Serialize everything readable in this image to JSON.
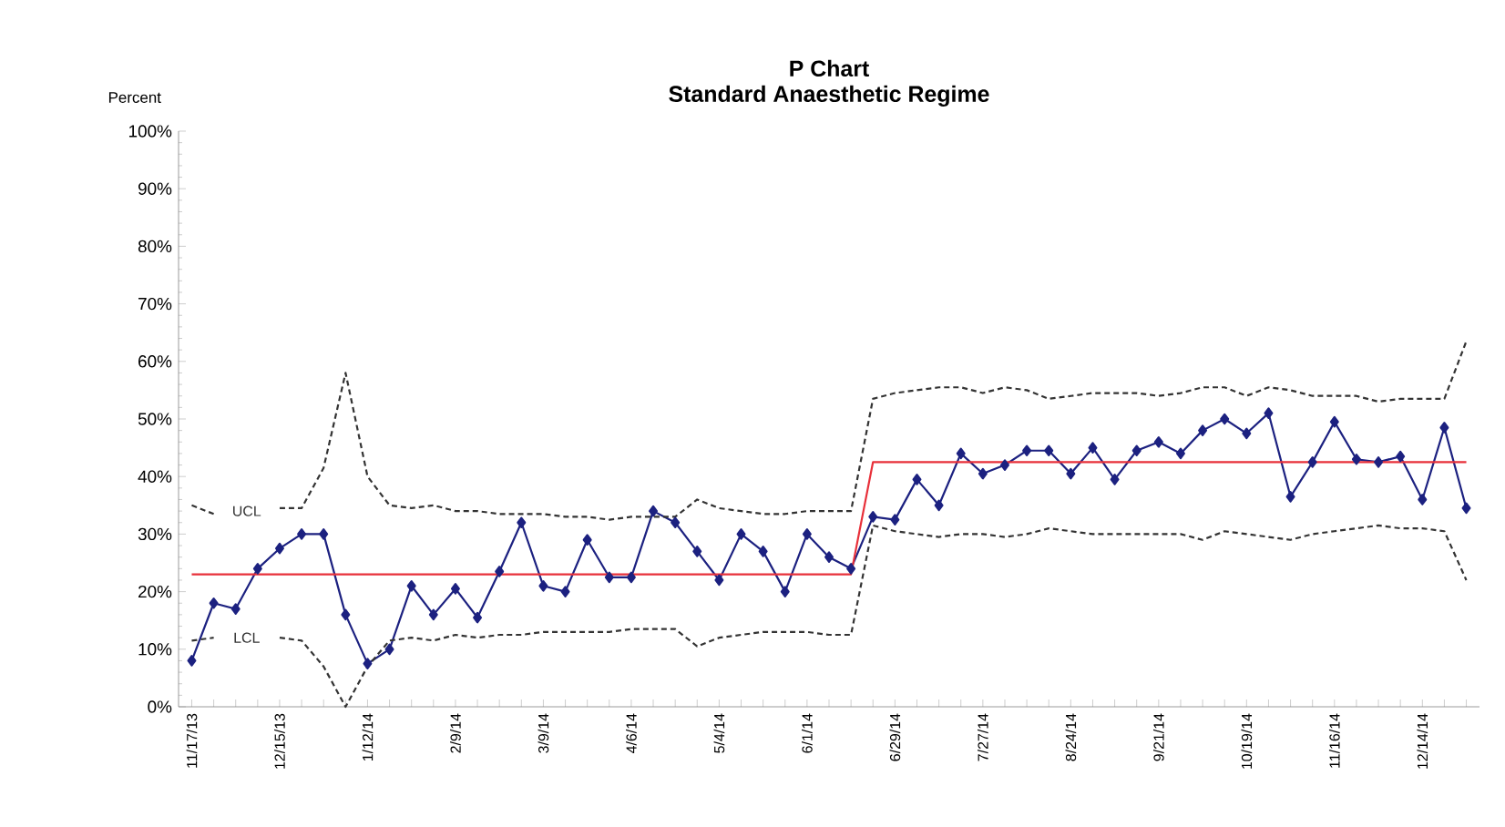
{
  "chart_data": {
    "type": "line",
    "title": "P Chart",
    "subtitle": "Standard Anaesthetic Regime",
    "ylabel": "Percent",
    "categories": [
      "11/17/13",
      null,
      null,
      null,
      "12/15/13",
      null,
      null,
      null,
      "1/12/14",
      null,
      null,
      null,
      "2/9/14",
      null,
      null,
      null,
      "3/9/14",
      null,
      null,
      null,
      "4/6/14",
      null,
      null,
      null,
      "5/4/14",
      null,
      null,
      null,
      "6/1/14",
      null,
      null,
      null,
      "6/29/14",
      null,
      null,
      null,
      "7/27/14",
      null,
      null,
      null,
      "8/24/14",
      null,
      null,
      null,
      "9/21/14",
      null,
      null,
      null,
      "10/19/14",
      null,
      null,
      null,
      "11/16/14",
      null,
      null,
      null,
      "12/14/14",
      null,
      null
    ],
    "ylim": [
      0,
      100
    ],
    "yticks": [
      {
        "value": 0,
        "label": "0%"
      },
      {
        "value": 10,
        "label": "10%"
      },
      {
        "value": 20,
        "label": "20%"
      },
      {
        "value": 30,
        "label": "30%"
      },
      {
        "value": 40,
        "label": "40%"
      },
      {
        "value": 50,
        "label": "50%"
      },
      {
        "value": 60,
        "label": "60%"
      },
      {
        "value": 70,
        "label": "70%"
      },
      {
        "value": 80,
        "label": "80%"
      },
      {
        "value": 90,
        "label": "90%"
      },
      {
        "value": 100,
        "label": "100%"
      }
    ],
    "grid": false,
    "series": [
      {
        "color": "#1c2180",
        "marker": "diamond",
        "line_style": "solid",
        "values": [
          8,
          18,
          17,
          24,
          27.5,
          30,
          30,
          16,
          7.5,
          10,
          21,
          16,
          20.5,
          15.5,
          23.5,
          32,
          21,
          20,
          29,
          22.5,
          22.5,
          34,
          32,
          27,
          22,
          30,
          27,
          20,
          30,
          26,
          24,
          33,
          32.5,
          39.5,
          35,
          44,
          40.5,
          42,
          44.5,
          44.5,
          40.5,
          45,
          39.5,
          44.5,
          46,
          44,
          48,
          50,
          47.5,
          51,
          36.5,
          42.5,
          49.5,
          43,
          42.5,
          43.5,
          36,
          48.5,
          34.5
        ]
      },
      {
        "color": "#e8303a",
        "marker": "none",
        "line_style": "solid",
        "values": [
          23,
          23,
          23,
          23,
          23,
          23,
          23,
          23,
          23,
          23,
          23,
          23,
          23,
          23,
          23,
          23,
          23,
          23,
          23,
          23,
          23,
          23,
          23,
          23,
          23,
          23,
          23,
          23,
          23,
          23,
          23,
          42.5,
          42.5,
          42.5,
          42.5,
          42.5,
          42.5,
          42.5,
          42.5,
          42.5,
          42.5,
          42.5,
          42.5,
          42.5,
          42.5,
          42.5,
          42.5,
          42.5,
          42.5,
          42.5,
          42.5,
          42.5,
          42.5,
          42.5,
          42.5,
          42.5,
          42.5,
          42.5,
          42.5
        ]
      },
      {
        "name": "UCL",
        "color": "#333333",
        "marker": "none",
        "line_style": "dashed",
        "values": [
          35,
          33.5,
          null,
          null,
          34.5,
          34.5,
          41.5,
          58,
          40,
          35,
          34.5,
          35,
          34,
          34,
          33.5,
          33.5,
          33.5,
          33,
          33,
          32.5,
          33,
          33,
          33,
          36,
          34.5,
          34,
          33.5,
          33.5,
          34,
          34,
          34,
          53.5,
          54.5,
          55,
          55.5,
          55.5,
          54.5,
          55.5,
          55,
          53.5,
          54,
          54.5,
          54.5,
          54.5,
          54,
          54.5,
          55.5,
          55.5,
          54,
          55.5,
          55,
          54,
          54,
          54,
          53,
          53.5,
          53.5,
          53.5,
          63.5
        ]
      },
      {
        "name": "LCL",
        "color": "#333333",
        "marker": "none",
        "line_style": "dashed",
        "values": [
          11.5,
          12,
          null,
          null,
          12,
          11.5,
          7,
          0,
          7,
          11.5,
          12,
          11.5,
          12.5,
          12,
          12.5,
          12.5,
          13,
          13,
          13,
          13,
          13.5,
          13.5,
          13.5,
          10.5,
          12,
          12.5,
          13,
          13,
          13,
          12.5,
          12.5,
          31.5,
          30.5,
          30,
          29.5,
          30,
          30,
          29.5,
          30,
          31,
          30.5,
          30,
          30,
          30,
          30,
          30,
          29,
          30.5,
          30,
          29.5,
          29,
          30,
          30.5,
          31,
          31.5,
          31,
          31,
          30.5,
          22
        ]
      }
    ]
  }
}
